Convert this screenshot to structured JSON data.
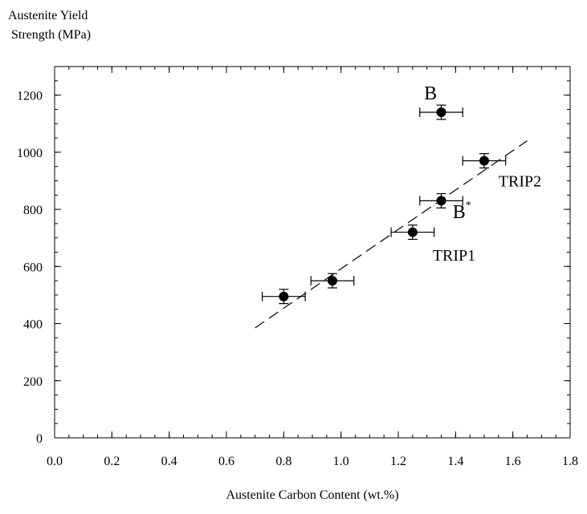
{
  "chart_data": {
    "type": "scatter",
    "ylabel_lines": [
      "Austenite Yield",
      "Strength (MPa)"
    ],
    "xlabel": "Austenite Carbon Content (wt.%)",
    "xlim": [
      0.0,
      1.8
    ],
    "ylim": [
      0,
      1300
    ],
    "x_ticks": [
      "0.0",
      "0.2",
      "0.4",
      "0.6",
      "0.8",
      "1.0",
      "1.2",
      "1.4",
      "1.6",
      "1.8"
    ],
    "y_ticks": [
      "0",
      "200",
      "400",
      "600",
      "800",
      "1000",
      "1200"
    ],
    "points": [
      {
        "x": 0.8,
        "y": 495,
        "xerr": 0.075,
        "yerr": 25
      },
      {
        "x": 0.97,
        "y": 550,
        "xerr": 0.075,
        "yerr": 25
      },
      {
        "x": 1.25,
        "y": 720,
        "xerr": 0.075,
        "yerr": 25
      },
      {
        "x": 1.35,
        "y": 830,
        "xerr": 0.075,
        "yerr": 25
      },
      {
        "x": 1.5,
        "y": 970,
        "xerr": 0.075,
        "yerr": 25
      },
      {
        "x": 1.35,
        "y": 1140,
        "xerr": 0.075,
        "yerr": 25
      }
    ],
    "fit_line": {
      "x": [
        0.7,
        1.65
      ],
      "y": [
        385,
        1040
      ],
      "style": "dashed"
    },
    "annotations": {
      "b": {
        "text": "B",
        "x": 1.29,
        "y": 1185
      },
      "b_star": {
        "text": "B",
        "sup": "*",
        "x": 1.39,
        "y": 770
      },
      "trip1": {
        "text": "TRIP1",
        "x": 1.32,
        "y": 620
      },
      "trip2": {
        "text": "TRIP2",
        "x": 1.55,
        "y": 880
      }
    },
    "grid": false
  }
}
